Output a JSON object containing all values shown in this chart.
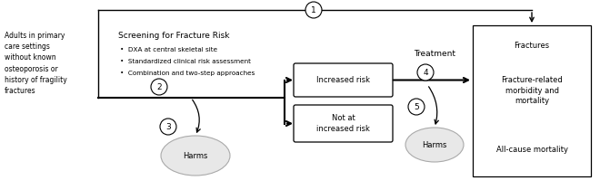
{
  "bg_color": "#ffffff",
  "fig_width": 6.6,
  "fig_height": 2.1,
  "dpi": 100,
  "population_text": "Adults in primary\ncare settings\nwithout known\nosteoporosis or\nhistory of fragility\nfractures",
  "screening_title": "Screening for Fracture Risk",
  "screening_bullets": [
    "•  DXA at central skeletal site",
    "•  Standardized clinical risk assessment",
    "•  Combination and two-step approaches"
  ],
  "treatment_label": "Treatment",
  "increased_risk_text": "Increased risk",
  "not_at_risk_text": "Not at\nincreased risk",
  "outcomes_texts": [
    "Fractures",
    "Fracture-related\nmorbidity and\nmortality",
    "All-cause mortality"
  ],
  "harms_text": "Harms",
  "arrow_color": "#000000",
  "box_edge_color": "#000000",
  "text_color": "#000000",
  "circle_edge_color": "#aaaaaa",
  "circle_bg": "#e8e8e8"
}
